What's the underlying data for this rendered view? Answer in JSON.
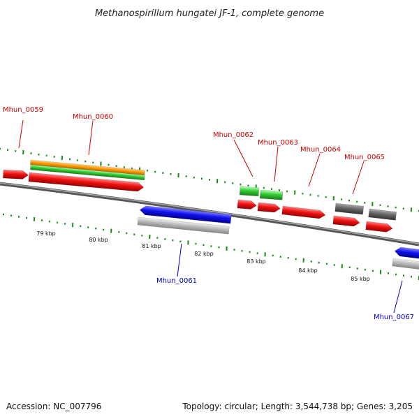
{
  "title": "Methanospirillum hungatei JF-1, complete genome",
  "footer": {
    "accession": "Accession: NC_007796",
    "summary": "Topology: circular; Length: 3,544,738 bp; Genes: 3,205"
  },
  "colors": {
    "forward_label": "#cc0000",
    "reverse_label": "#0000cc",
    "tick": "#1a8a1a",
    "backbone": "#777777",
    "red": "#ee1111",
    "blue": "#1111ee",
    "green": "#33cc33",
    "orange": "#ff9900",
    "gray": "#666666",
    "light_gray": "#bbbbbb"
  },
  "scale_labels": [
    "79 kbp",
    "80 kbp",
    "81 kbp",
    "82 kbp",
    "83 kbp",
    "84 kbp",
    "85 kbp"
  ],
  "gene_labels": [
    {
      "id": "Mhun_0059",
      "strand": "forward"
    },
    {
      "id": "Mhun_0060",
      "strand": "forward"
    },
    {
      "id": "Mhun_0061",
      "strand": "reverse"
    },
    {
      "id": "Mhun_0062",
      "strand": "forward"
    },
    {
      "id": "Mhun_0063",
      "strand": "forward"
    },
    {
      "id": "Mhun_0064",
      "strand": "forward"
    },
    {
      "id": "Mhun_0065",
      "strand": "forward"
    },
    {
      "id": "Mhun_0067",
      "strand": "reverse"
    }
  ]
}
